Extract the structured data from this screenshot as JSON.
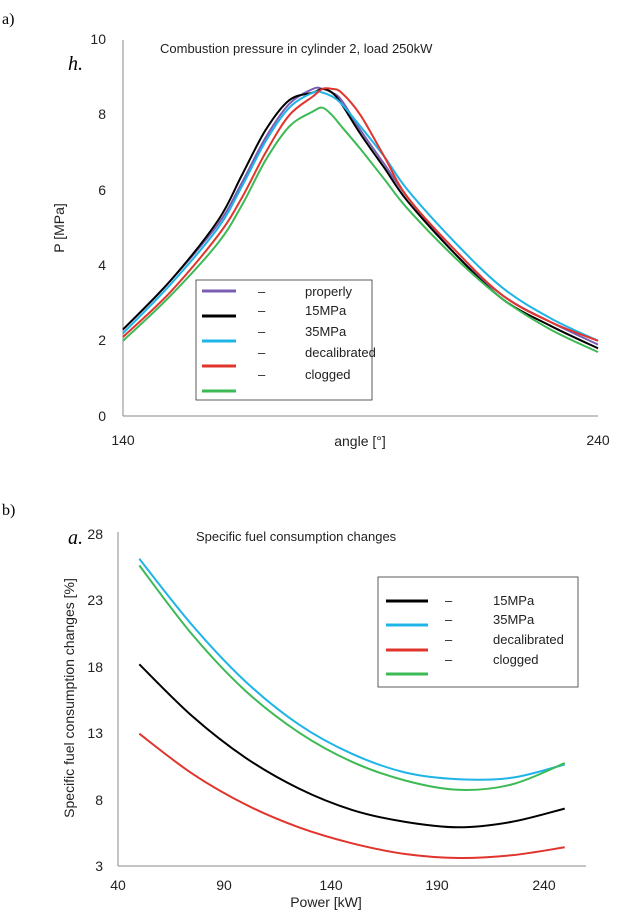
{
  "colors": {
    "properly": "#7a5db3",
    "15MPa": "#000000",
    "35MPa": "#1fb4e8",
    "decalibrated": "#e0342c",
    "clogged": "#3cba54"
  },
  "charts": [
    {
      "panel_label": "a)",
      "italic_tag": "h.",
      "chart_data": {
        "type": "line",
        "title": "Combustion pressure in cylinder 2, load 250kW",
        "xlabel": "angle [°]",
        "ylabel": "P [MPa]",
        "xlim": [
          140,
          240
        ],
        "ylim": [
          0,
          10
        ],
        "x_ticks": [
          "140",
          "240"
        ],
        "y_ticks": [
          "0",
          "2",
          "4",
          "6",
          "8",
          "10"
        ],
        "legend_position": "bottom-left",
        "legend_dash": "–",
        "grid": false,
        "series": [
          {
            "name": "properly",
            "color_key": "properly",
            "x": [
              140,
              150,
              160,
              165,
              170,
              175,
              180,
              182,
              184,
              186,
              190,
              195,
              200,
              210,
              220,
              230,
              240
            ],
            "y": [
              2.3,
              3.6,
              5.1,
              6.2,
              7.4,
              8.3,
              8.7,
              8.7,
              8.6,
              8.4,
              7.6,
              6.7,
              5.8,
              4.3,
              3.2,
              2.5,
              1.9
            ]
          },
          {
            "name": "15MPa",
            "color_key": "15MPa",
            "x": [
              140,
              150,
              160,
              165,
              170,
              175,
              180,
              182,
              184,
              186,
              190,
              195,
              200,
              210,
              220,
              230,
              240
            ],
            "y": [
              2.3,
              3.6,
              5.2,
              6.4,
              7.6,
              8.4,
              8.6,
              8.7,
              8.6,
              8.3,
              7.5,
              6.6,
              5.7,
              4.3,
              3.1,
              2.4,
              1.8
            ]
          },
          {
            "name": "35MPa",
            "color_key": "35MPa",
            "x": [
              140,
              150,
              160,
              165,
              170,
              175,
              180,
              182,
              184,
              186,
              190,
              195,
              200,
              210,
              220,
              230,
              240
            ],
            "y": [
              2.2,
              3.5,
              5.0,
              6.1,
              7.3,
              8.2,
              8.6,
              8.6,
              8.5,
              8.3,
              7.7,
              6.9,
              6.0,
              4.6,
              3.4,
              2.6,
              2.0
            ]
          },
          {
            "name": "decalibrated",
            "color_key": "decalibrated",
            "x": [
              140,
              150,
              160,
              165,
              170,
              175,
              180,
              182,
              184,
              186,
              190,
              195,
              200,
              210,
              220,
              230,
              240
            ],
            "y": [
              2.1,
              3.3,
              4.8,
              5.8,
              7.0,
              8.0,
              8.5,
              8.7,
              8.7,
              8.6,
              8.0,
              6.9,
              5.8,
              4.4,
              3.2,
              2.5,
              2.0
            ]
          },
          {
            "name": "clogged",
            "color_key": "clogged",
            "x": [
              140,
              150,
              160,
              165,
              170,
              175,
              180,
              182,
              184,
              186,
              190,
              195,
              200,
              210,
              220,
              230,
              240
            ],
            "y": [
              2.0,
              3.2,
              4.6,
              5.6,
              6.8,
              7.7,
              8.1,
              8.2,
              8.0,
              7.7,
              7.1,
              6.3,
              5.5,
              4.2,
              3.1,
              2.3,
              1.7
            ]
          }
        ]
      }
    },
    {
      "panel_label": "b)",
      "italic_tag": "a.",
      "chart_data": {
        "type": "line",
        "title": "Specific fuel consumption changes",
        "xlabel": "Power [kW]",
        "ylabel": "Specific  fuel consumption changes [%]",
        "xlim": [
          40,
          260
        ],
        "ylim": [
          3,
          28
        ],
        "x_ticks": [
          "40",
          "90",
          "140",
          "190",
          "240"
        ],
        "y_ticks": [
          "3",
          "8",
          "13",
          "18",
          "23",
          "28"
        ],
        "legend_position": "top-right",
        "legend_dash": "–",
        "grid": false,
        "series": [
          {
            "name": "15MPa",
            "color_key": "15MPa",
            "x": [
              50,
              75,
              100,
              125,
              150,
              175,
              200,
              225,
              250
            ],
            "y": [
              18.1,
              14.2,
              11.1,
              8.8,
              7.2,
              6.3,
              5.9,
              6.3,
              7.3
            ]
          },
          {
            "name": "35MPa",
            "color_key": "35MPa",
            "x": [
              50,
              75,
              100,
              125,
              150,
              175,
              200,
              225,
              250
            ],
            "y": [
              26.0,
              21.0,
              16.8,
              13.6,
              11.4,
              10.0,
              9.5,
              9.6,
              10.6
            ]
          },
          {
            "name": "decalibrated",
            "color_key": "decalibrated",
            "x": [
              50,
              75,
              100,
              125,
              150,
              175,
              200,
              225,
              250
            ],
            "y": [
              12.9,
              9.9,
              7.6,
              5.9,
              4.7,
              3.9,
              3.6,
              3.8,
              4.4
            ]
          },
          {
            "name": "clogged",
            "color_key": "clogged",
            "x": [
              50,
              75,
              100,
              125,
              150,
              175,
              200,
              225,
              250
            ],
            "y": [
              25.5,
              20.3,
              16.1,
              13.0,
              10.8,
              9.4,
              8.7,
              9.1,
              10.7
            ]
          }
        ]
      }
    }
  ]
}
